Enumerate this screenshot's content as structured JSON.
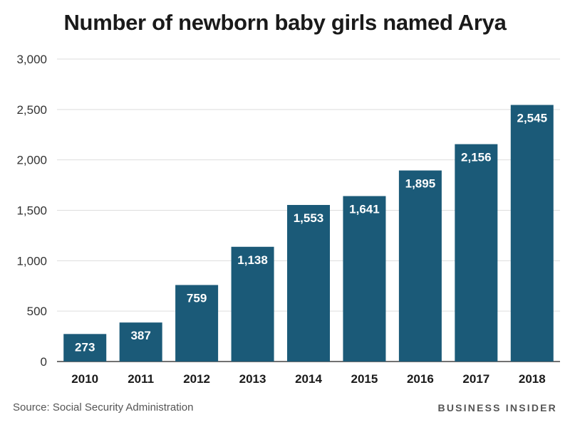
{
  "chart_data": {
    "type": "bar",
    "title": "Number of newborn baby girls named Arya",
    "xlabel": "",
    "ylabel": "",
    "categories": [
      "2010",
      "2011",
      "2012",
      "2013",
      "2014",
      "2015",
      "2016",
      "2017",
      "2018"
    ],
    "values": [
      273,
      387,
      759,
      1138,
      1553,
      1641,
      1895,
      2156,
      2545
    ],
    "data_labels": [
      "273",
      "387",
      "759",
      "1,138",
      "1,553",
      "1,641",
      "1,895",
      "2,156",
      "2,545"
    ],
    "ylim": [
      0,
      3000
    ],
    "yticks": [
      0,
      500,
      1000,
      1500,
      2000,
      2500,
      3000
    ],
    "ytick_labels": [
      "0",
      "500",
      "1,000",
      "1,500",
      "2,000",
      "2,500",
      "3,000"
    ],
    "grid": true,
    "bar_color": "#1b5a78",
    "legend": "none"
  },
  "footer": {
    "source": "Source: Social Security Administration",
    "brand": "BUSINESS INSIDER"
  }
}
